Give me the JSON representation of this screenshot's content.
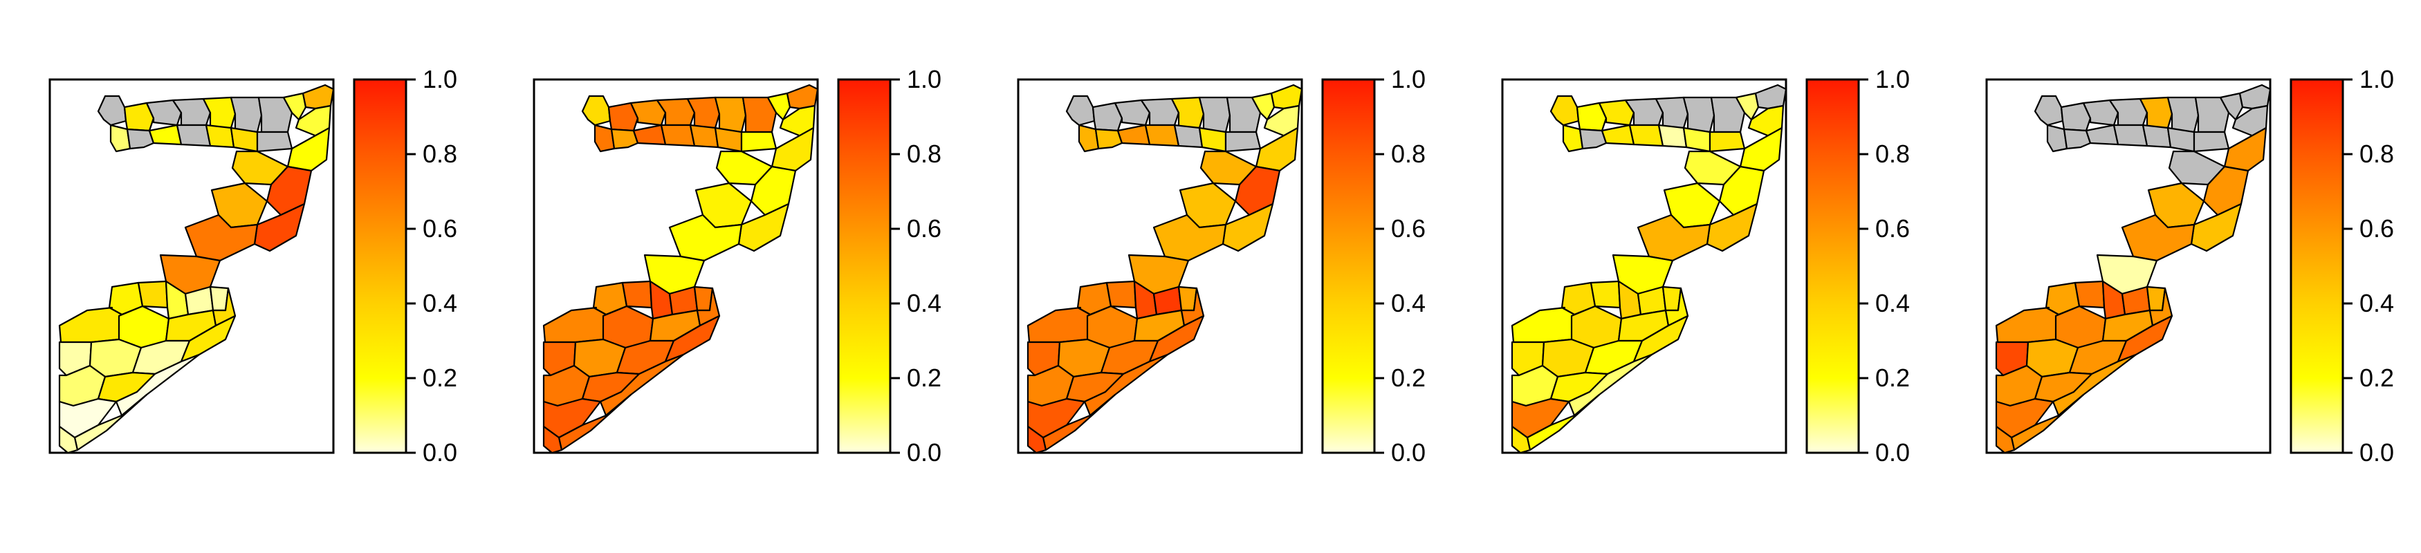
{
  "figure": {
    "panel_count": 5,
    "missing_color": "#bebebe",
    "border_color": "#000000"
  },
  "colorbar": {
    "ticks": [
      "0.0",
      "0.2",
      "0.4",
      "0.6",
      "0.8",
      "1.0"
    ],
    "colormap": [
      "#ffffe0",
      "#ffff00",
      "#ffd000",
      "#ff9500",
      "#ff5a00",
      "#ff1a00"
    ]
  },
  "panels": [
    {
      "id": "map-1",
      "levels": [
        -1,
        0.3,
        -1,
        -1,
        0.25,
        -1,
        -1,
        0.15,
        0.5,
        0.1,
        -1,
        0.2,
        -1,
        0.3,
        0.35,
        -1,
        0.15,
        0.2,
        0.4,
        0.85,
        0.5,
        0.85,
        0.7,
        0.65,
        0.25,
        0.35,
        0.15,
        0.05,
        0.05,
        0.3,
        0.2,
        0.3,
        0.35,
        0.05,
        0.1,
        0.05,
        0.3,
        0.1,
        0.3,
        0.0,
        0.0,
        0.05,
        0.05
      ]
    },
    {
      "id": "map-2",
      "levels": [
        0.35,
        0.75,
        0.6,
        0.65,
        0.7,
        0.55,
        0.7,
        0.2,
        0.65,
        0.7,
        0.55,
        0.75,
        0.65,
        0.6,
        0.55,
        0.2,
        0.25,
        0.3,
        0.2,
        0.2,
        0.25,
        0.3,
        0.2,
        0.2,
        0.6,
        0.75,
        0.85,
        0.8,
        0.7,
        0.65,
        0.75,
        0.6,
        0.7,
        0.75,
        0.6,
        0.75,
        0.8,
        0.7,
        0.75,
        0.8,
        0.7,
        0.75,
        0.8
      ]
    },
    {
      "id": "map-3",
      "levels": [
        -1,
        -1,
        -1,
        -1,
        0.35,
        -1,
        -1,
        0.15,
        0.3,
        0.5,
        0.45,
        0.6,
        0.55,
        -1,
        0.3,
        -1,
        0.1,
        0.4,
        0.5,
        0.85,
        0.45,
        0.45,
        0.5,
        0.55,
        0.65,
        0.7,
        0.85,
        0.9,
        0.55,
        0.7,
        0.65,
        0.55,
        0.7,
        0.75,
        0.6,
        0.7,
        0.75,
        0.65,
        0.7,
        0.8,
        0.7,
        0.75,
        0.85
      ]
    },
    {
      "id": "map-4",
      "levels": [
        0.35,
        0.2,
        0.3,
        -1,
        -1,
        -1,
        -1,
        0.1,
        -1,
        0.25,
        -1,
        0.3,
        0.3,
        0.05,
        0.15,
        0.3,
        0.25,
        0.2,
        0.15,
        0.2,
        0.2,
        0.45,
        0.5,
        0.2,
        0.35,
        0.3,
        0.4,
        0.3,
        0.3,
        0.2,
        0.35,
        0.3,
        0.25,
        0.3,
        0.35,
        0.2,
        0.3,
        0.15,
        0.25,
        0.7,
        0.1,
        0.2,
        0.3
      ]
    },
    {
      "id": "map-5",
      "levels": [
        -1,
        -1,
        -1,
        -1,
        0.5,
        -1,
        -1,
        -1,
        -1,
        -1,
        -1,
        -1,
        -1,
        -1,
        -1,
        -1,
        -1,
        0.6,
        -1,
        0.6,
        0.5,
        0.45,
        0.6,
        0.05,
        0.55,
        0.7,
        0.8,
        0.75,
        0.5,
        0.6,
        0.65,
        0.55,
        0.6,
        0.85,
        0.5,
        0.6,
        0.75,
        0.6,
        0.6,
        0.7,
        0.55,
        0.6,
        0.65
      ]
    }
  ]
}
